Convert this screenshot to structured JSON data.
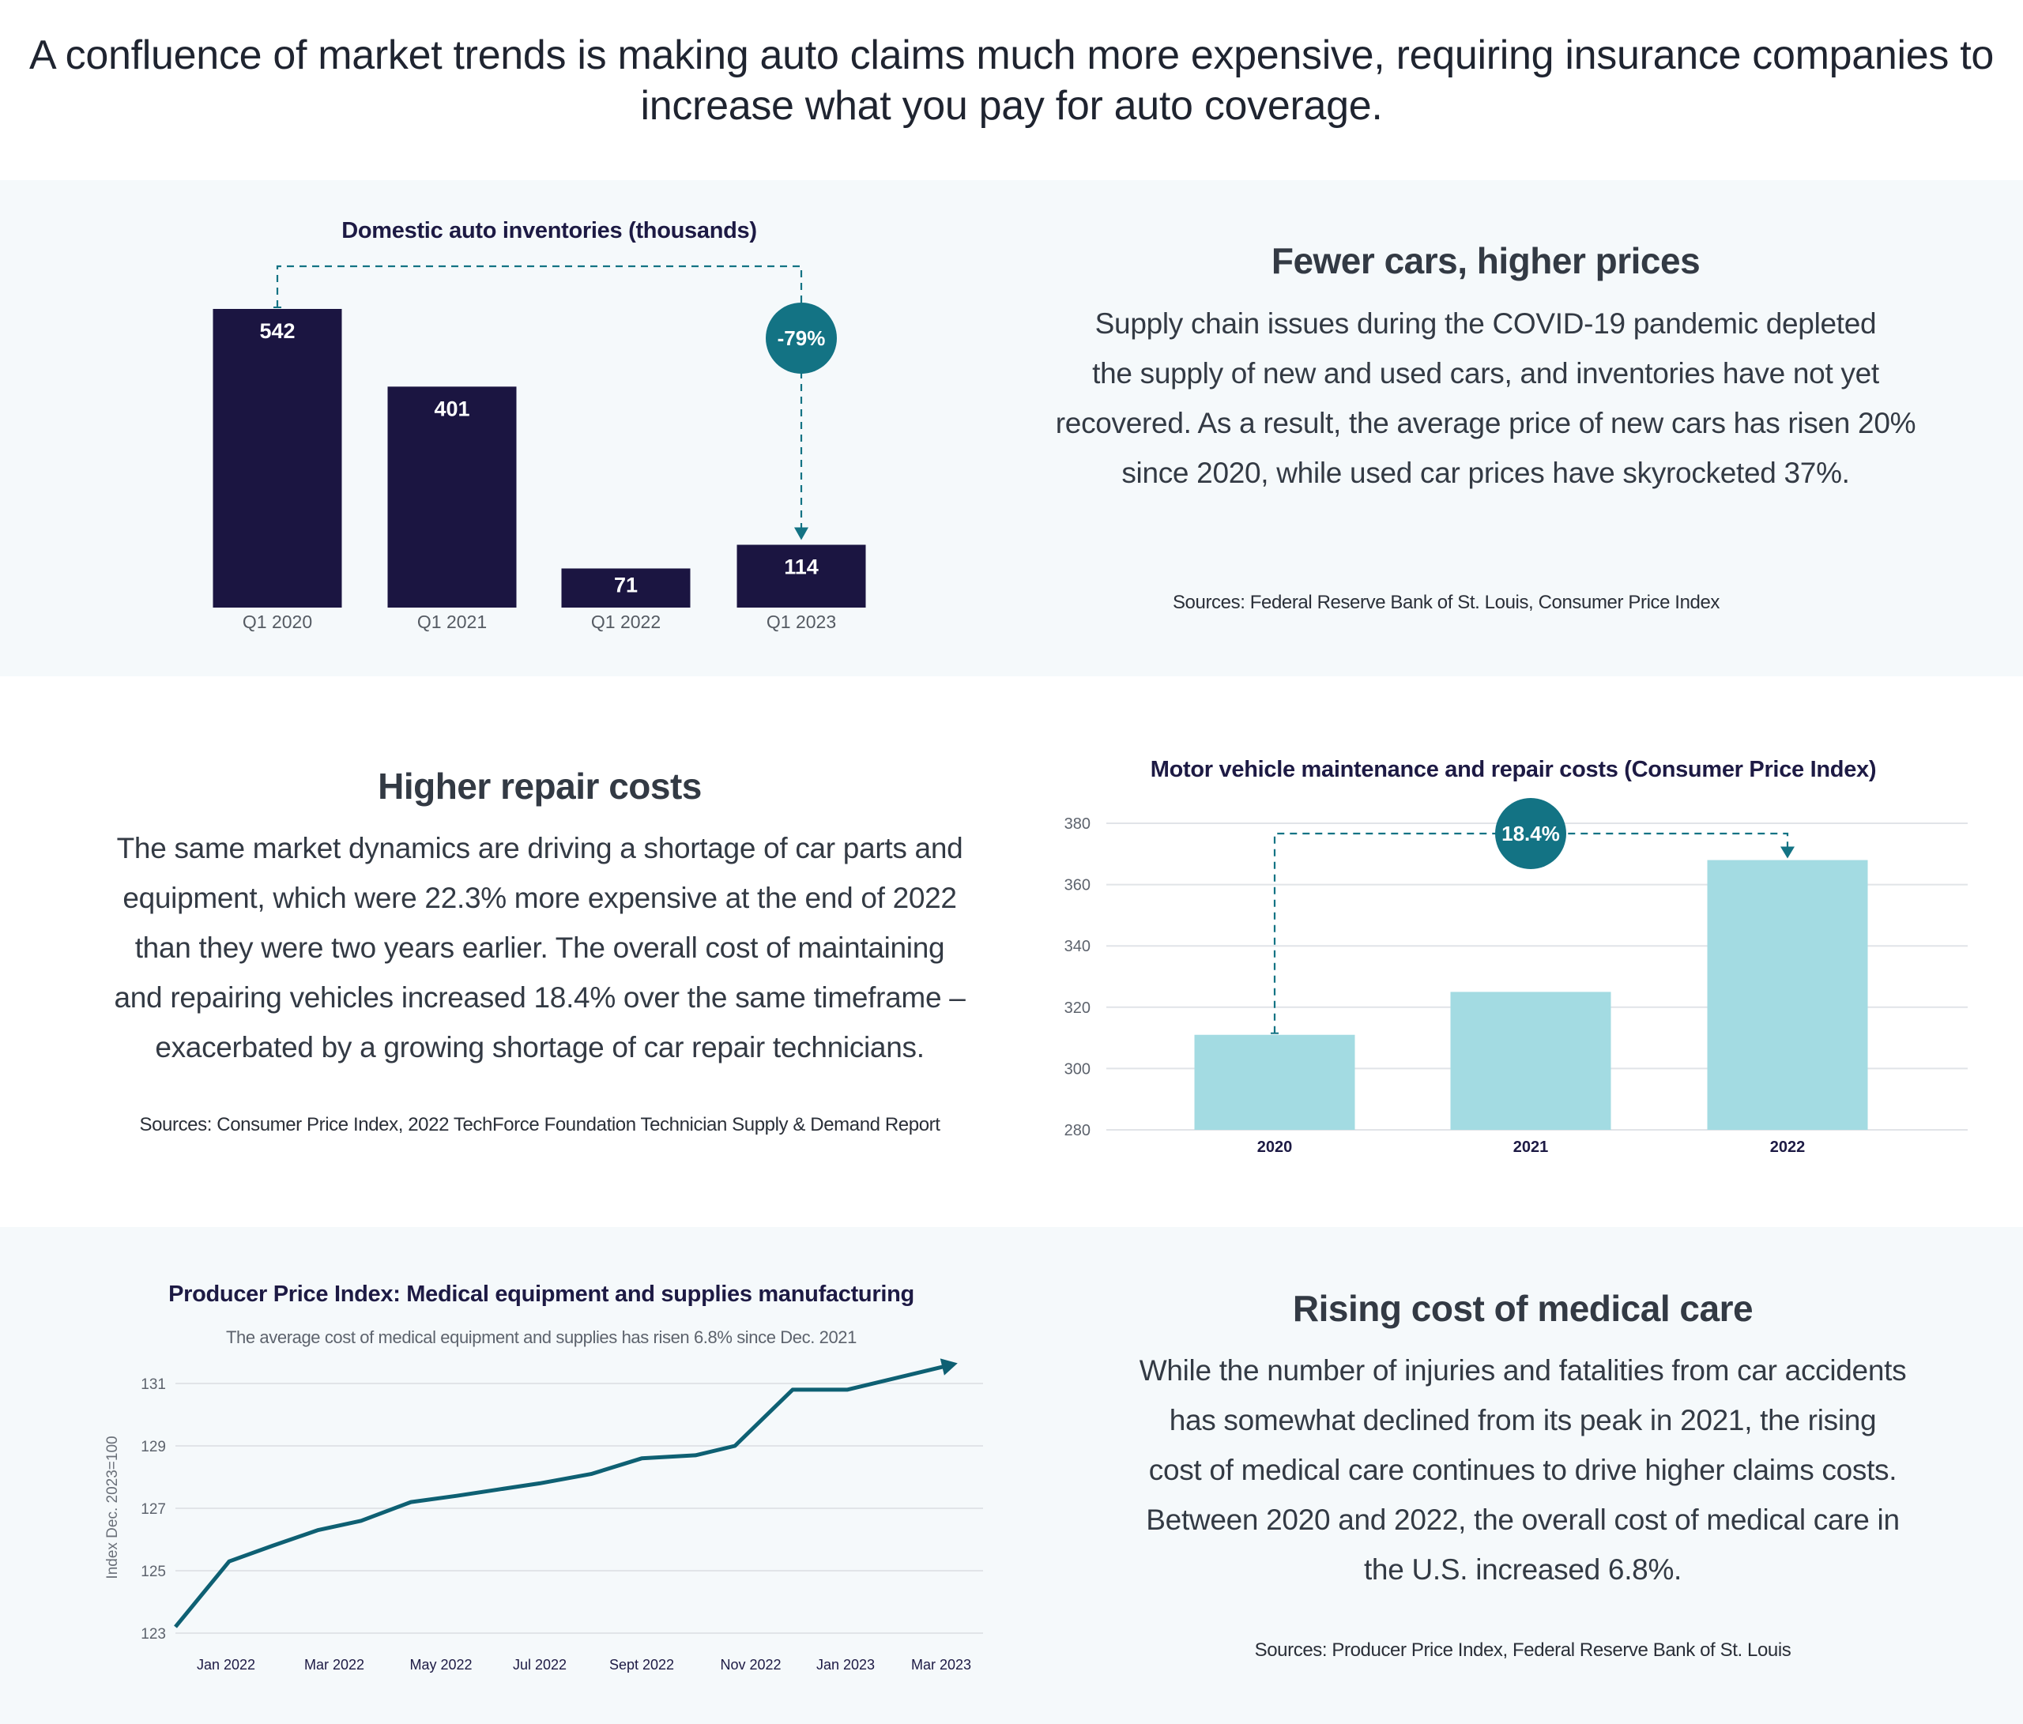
{
  "headline": {
    "line1": "A confluence of market trends is making auto claims much more expensive, requiring insurance companies to",
    "line2": "increase what you pay for auto coverage."
  },
  "section1": {
    "heading": "Fewer cars, higher prices",
    "body_lines": [
      "Supply chain issues during the COVID-19 pandemic depleted",
      "the supply of new and used cars, and inventories have not yet",
      "recovered. As a result, the average price of new cars has risen 20%",
      "since 2020, while used car prices have skyrocketed 37%."
    ],
    "sources": "Sources: Federal Reserve Bank of St. Louis, Consumer Price Index"
  },
  "section2": {
    "heading": "Higher repair costs",
    "body_lines": [
      "The same market dynamics are driving a shortage of car parts and",
      "equipment, which were 22.3% more expensive at the end of 2022",
      "than they were two years earlier. The overall cost of maintaining",
      "and repairing vehicles increased 18.4% over the same timeframe –",
      "exacerbated by a growing shortage of car repair technicians."
    ],
    "sources": "Sources: Consumer Price Index, 2022 TechForce Foundation Technician Supply & Demand Report"
  },
  "section3": {
    "heading": "Rising cost of medical care",
    "body_lines": [
      "While the number of injuries and fatalities from car accidents",
      "has somewhat declined from its peak in 2021, the rising",
      "cost of medical care continues to drive higher claims costs.",
      "Between 2020 and 2022, the overall cost of medical care in",
      "the U.S. increased 6.8%."
    ],
    "sources": "Sources: Producer Price Index, Federal Reserve Bank of St. Louis"
  },
  "colors": {
    "navy": "#1b1541",
    "teal": "#137384",
    "light_teal": "#a3dbe2",
    "line": "#0e6073",
    "band_bg": "#f5f9fb",
    "grid": "#e1e4e8"
  },
  "chart_data": [
    {
      "type": "bar",
      "title": "Domestic auto inventories (thousands)",
      "categories": [
        "Q1 2020",
        "Q1 2021",
        "Q1 2022",
        "Q1 2023"
      ],
      "values": [
        542,
        401,
        71,
        114
      ],
      "value_labels": [
        "542",
        "401",
        "71",
        "114"
      ],
      "annotation": "-79%",
      "ylim": [
        0,
        542
      ]
    },
    {
      "type": "bar",
      "title": "Motor vehicle maintenance and repair costs (Consumer Price Index)",
      "categories": [
        "2020",
        "2021",
        "2022"
      ],
      "values": [
        311,
        325,
        368
      ],
      "yticks": [
        "280",
        "300",
        "320",
        "340",
        "360",
        "380"
      ],
      "ylim": [
        280,
        380
      ],
      "grid": true,
      "annotation": "18.4%"
    },
    {
      "type": "line",
      "title": "Producer Price Index: Medical equipment and supplies manufacturing",
      "subtitle": "The average cost of medical equipment and supplies has risen 6.8% since Dec. 2021",
      "ylabel": "Index Dec. 2023=100",
      "xtick_labels": [
        "Jan 2022",
        "Mar 2022",
        "May 2022",
        "Jul 2022",
        "Sept 2022",
        "Nov 2022",
        "Jan 2023",
        "Mar 2023"
      ],
      "x": [
        "Dec 2021",
        "Jan 2022",
        "Feb 2022",
        "Mar 2022",
        "Apr 2022",
        "May 2022",
        "Jun 2022",
        "Jul 2022",
        "Aug 2022",
        "Sept 2022",
        "Oct 2022",
        "Nov 2022",
        "Dec 2022",
        "Jan 2023",
        "Feb 2023",
        "Mar 2023"
      ],
      "values": [
        123.2,
        125.3,
        125.8,
        126.3,
        126.6,
        127.2,
        127.4,
        127.6,
        127.8,
        128.1,
        128.6,
        128.7,
        129.0,
        130.8,
        130.8,
        131.6
      ],
      "yticks": [
        "123",
        "125",
        "127",
        "129",
        "131"
      ],
      "ylim": [
        123,
        131
      ],
      "grid": true
    }
  ]
}
